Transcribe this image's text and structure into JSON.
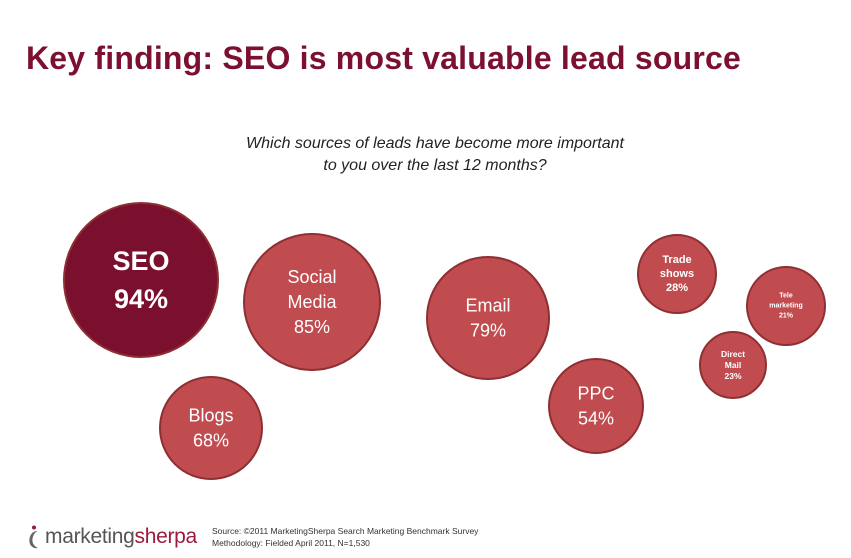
{
  "title": "Key finding: SEO is most valuable lead source",
  "question_lines": [
    "Which sources of leads have become more important",
    "to you over the last 12 months?"
  ],
  "colors": {
    "title": "#7b1030",
    "highlight_bubble": "#7a0f2e",
    "bubble": "#c14c50",
    "bubble_border": "#8e2f33",
    "bubble_text": "#ffffff"
  },
  "chart_data": {
    "type": "bubble",
    "title": "",
    "question": "Which sources of leads have become more important to you over the last 12 months?",
    "categories": [
      "SEO",
      "Social Media",
      "Email",
      "Blogs",
      "PPC",
      "Trade shows",
      "Direct Mail",
      "Tele marketing"
    ],
    "values": [
      94,
      85,
      79,
      68,
      54,
      28,
      23,
      21
    ],
    "value_labels": [
      "94%",
      "85%",
      "79%",
      "68%",
      "54%",
      "28%",
      "23%",
      "21%"
    ],
    "bubbles": [
      {
        "lines": [
          "SEO"
        ],
        "value": 94,
        "label": "94%",
        "highlight": true
      },
      {
        "lines": [
          "Social",
          "Media"
        ],
        "value": 85,
        "label": "85%",
        "highlight": false
      },
      {
        "lines": [
          "Email"
        ],
        "value": 79,
        "label": "79%",
        "highlight": false
      },
      {
        "lines": [
          "Blogs"
        ],
        "value": 68,
        "label": "68%",
        "highlight": false
      },
      {
        "lines": [
          "PPC"
        ],
        "value": 54,
        "label": "54%",
        "highlight": false
      },
      {
        "lines": [
          "Trade",
          "shows"
        ],
        "value": 28,
        "label": "28%",
        "highlight": false
      },
      {
        "lines": [
          "Direct",
          "Mail"
        ],
        "value": 23,
        "label": "23%",
        "highlight": false
      },
      {
        "lines": [
          "Tele",
          "marketing"
        ],
        "value": 21,
        "label": "21%",
        "highlight": false
      }
    ]
  },
  "footer": {
    "logo_part1": "marketing",
    "logo_part2": "sherpa",
    "source": "Source: ©2011 MarketingSherpa Search Marketing Benchmark Survey",
    "methodology": "Methodology: Fielded April 2011, N=1,530"
  }
}
